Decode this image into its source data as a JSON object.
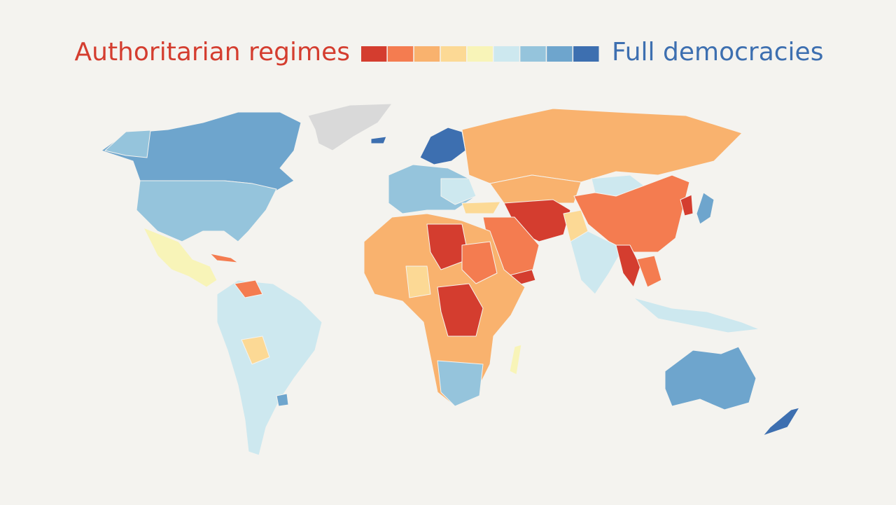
{
  "legend": {
    "left_label": "Authoritarian regimes",
    "right_label": "Full democracies",
    "colors": [
      "#d43d2f",
      "#f47c50",
      "#f9b26e",
      "#fcd995",
      "#f8f4b8",
      "#cde8ef",
      "#95c4dc",
      "#6ea5cd",
      "#3d6fb0"
    ]
  }
}
